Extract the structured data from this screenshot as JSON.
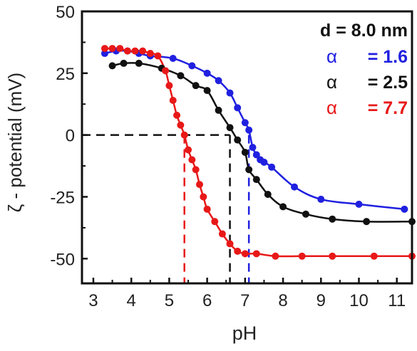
{
  "chart_data": {
    "type": "line",
    "title": "",
    "xlabel": "pH",
    "ylabel": "ζ - potential (mV)",
    "xlim": [
      2.7,
      11.4
    ],
    "ylim": [
      -60,
      50
    ],
    "xticks": [
      3,
      4,
      5,
      6,
      7,
      8,
      9,
      10,
      11
    ],
    "yticks": [
      50,
      25,
      0,
      -25,
      -50
    ],
    "ytick_labels": [
      "50",
      "25",
      "0",
      "-25",
      "-50"
    ],
    "grid": false,
    "legend_position": "top-right",
    "legend_header": "d = 8.0 nm",
    "series": [
      {
        "name": "α = 1.6",
        "legend_symbol": "α",
        "legend_value": "= 1.6",
        "color": "#2020e0",
        "x": [
          3.3,
          3.6,
          3.9,
          4.2,
          4.5,
          5.1,
          5.6,
          6.0,
          6.3,
          6.6,
          6.8,
          7.0,
          7.1,
          7.2,
          7.3,
          7.4,
          7.5,
          7.7,
          8.3,
          9.0,
          10.0,
          11.2
        ],
        "y": [
          33,
          34,
          34,
          33,
          32,
          31,
          28,
          25,
          22,
          17,
          11,
          5,
          2,
          -5,
          -8,
          -10,
          -11,
          -13,
          -21,
          -26,
          -28,
          -30
        ]
      },
      {
        "name": "α = 2.5",
        "legend_symbol": "α",
        "legend_value": "= 2.5",
        "color": "#111111",
        "x": [
          3.5,
          3.8,
          4.2,
          4.8,
          5.3,
          5.7,
          6.0,
          6.3,
          6.6,
          6.8,
          7.0,
          7.1,
          7.3,
          7.6,
          8.0,
          8.6,
          9.3,
          10.2,
          11.4
        ],
        "y": [
          28,
          29,
          29,
          27,
          24,
          20,
          18,
          10,
          3,
          -2,
          -7,
          -14,
          -18,
          -24,
          -29,
          -32,
          -34,
          -35,
          -35
        ]
      },
      {
        "name": "α = 7.7",
        "legend_symbol": "α",
        "legend_value": "= 7.7",
        "color": "#e81818",
        "x": [
          3.3,
          3.5,
          3.7,
          3.9,
          4.1,
          4.3,
          4.5,
          4.7,
          4.9,
          5.0,
          5.1,
          5.2,
          5.3,
          5.4,
          5.5,
          5.6,
          5.7,
          5.8,
          5.9,
          6.0,
          6.2,
          6.4,
          6.6,
          6.8,
          7.0,
          7.3,
          7.8,
          8.5,
          9.3,
          10.4,
          11.4
        ],
        "y": [
          35,
          35,
          35,
          34,
          34,
          34,
          33,
          32,
          26,
          20,
          14,
          8,
          4,
          0,
          -6,
          -10,
          -14,
          -20,
          -25,
          -30,
          -35,
          -40,
          -44,
          -47,
          -48,
          -48,
          -49,
          -49,
          -49,
          -49,
          -49
        ]
      }
    ],
    "reference_lines": [
      {
        "type": "horizontal",
        "y": 0,
        "style": "dashed",
        "color": "#111111"
      },
      {
        "type": "vertical",
        "x": 5.4,
        "style": "dashed",
        "color": "#e81818"
      },
      {
        "type": "vertical",
        "x": 6.6,
        "style": "dashed",
        "color": "#111111"
      },
      {
        "type": "vertical",
        "x": 7.1,
        "style": "dashed",
        "color": "#2020e0"
      }
    ]
  }
}
